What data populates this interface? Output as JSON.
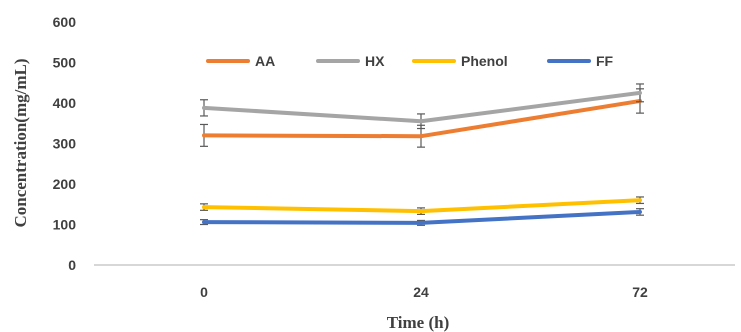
{
  "chart_data": {
    "type": "line",
    "categories": [
      "0",
      "24",
      "72"
    ],
    "xlabel": "Time (h)",
    "ylabel": "Concentration(mg/mL)",
    "ylim": [
      0,
      600
    ],
    "yticks": [
      0,
      100,
      200,
      300,
      400,
      500,
      600
    ],
    "grid": false,
    "legend": "top",
    "series": [
      {
        "name": "AA",
        "color": "#ED7D31",
        "values": [
          320,
          318,
          405
        ],
        "errors": [
          27,
          27,
          30
        ]
      },
      {
        "name": "HX",
        "color": "#A5A5A5",
        "values": [
          388,
          355,
          425
        ],
        "errors": [
          20,
          18,
          22
        ]
      },
      {
        "name": "Phenol",
        "color": "#FFC000",
        "values": [
          143,
          133,
          160
        ],
        "errors": [
          8,
          8,
          8
        ]
      },
      {
        "name": "FF",
        "color": "#4472C4",
        "values": [
          106,
          104,
          131
        ],
        "errors": [
          6,
          6,
          8
        ]
      }
    ]
  }
}
